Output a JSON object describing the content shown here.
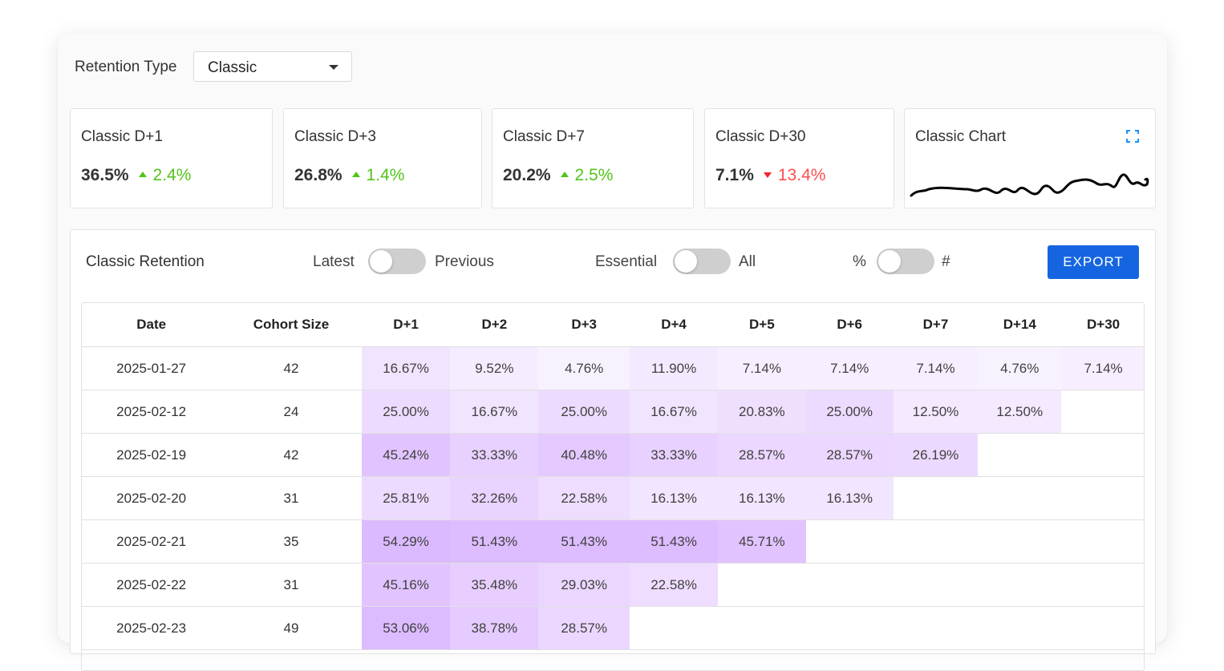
{
  "retention_type": {
    "label": "Retention Type",
    "selected": "Classic"
  },
  "metrics": [
    {
      "title": "Classic D+1",
      "value": "36.5%",
      "change": "2.4%",
      "direction": "up"
    },
    {
      "title": "Classic D+3",
      "value": "26.8%",
      "change": "1.4%",
      "direction": "up"
    },
    {
      "title": "Classic D+7",
      "value": "20.2%",
      "change": "2.5%",
      "direction": "up"
    },
    {
      "title": "Classic D+30",
      "value": "7.1%",
      "change": "13.4%",
      "direction": "down"
    }
  ],
  "chart_card": {
    "title": "Classic Chart",
    "icon": "expand-icon"
  },
  "panel": {
    "title": "Classic Retention",
    "toggle1": {
      "left": "Latest",
      "right": "Previous"
    },
    "toggle2": {
      "left": "Essential",
      "right": "All"
    },
    "toggle3": {
      "left": "%",
      "right": "#"
    },
    "export_label": "EXPORT"
  },
  "colors": {
    "accent": "#1565e0",
    "positive": "#52c41a",
    "negative": "#ff4d4f",
    "heat": "#b266ff"
  },
  "table": {
    "headers": [
      "Date",
      "Cohort Size",
      "D+1",
      "D+2",
      "D+3",
      "D+4",
      "D+5",
      "D+6",
      "D+7",
      "D+14",
      "D+30"
    ],
    "rows": [
      {
        "date": "2025-01-27",
        "size": "42",
        "cells": [
          "16.67%",
          "9.52%",
          "4.76%",
          "11.90%",
          "7.14%",
          "7.14%",
          "7.14%",
          "4.76%",
          "7.14%"
        ]
      },
      {
        "date": "2025-02-12",
        "size": "24",
        "cells": [
          "25.00%",
          "16.67%",
          "25.00%",
          "16.67%",
          "20.83%",
          "25.00%",
          "12.50%",
          "12.50%",
          ""
        ]
      },
      {
        "date": "2025-02-19",
        "size": "42",
        "cells": [
          "45.24%",
          "33.33%",
          "40.48%",
          "33.33%",
          "28.57%",
          "28.57%",
          "26.19%",
          "",
          ""
        ]
      },
      {
        "date": "2025-02-20",
        "size": "31",
        "cells": [
          "25.81%",
          "32.26%",
          "22.58%",
          "16.13%",
          "16.13%",
          "16.13%",
          "",
          "",
          ""
        ]
      },
      {
        "date": "2025-02-21",
        "size": "35",
        "cells": [
          "54.29%",
          "51.43%",
          "51.43%",
          "51.43%",
          "45.71%",
          "",
          "",
          "",
          ""
        ]
      },
      {
        "date": "2025-02-22",
        "size": "31",
        "cells": [
          "45.16%",
          "35.48%",
          "29.03%",
          "22.58%",
          "",
          "",
          "",
          "",
          ""
        ]
      },
      {
        "date": "2025-02-23",
        "size": "49",
        "cells": [
          "53.06%",
          "38.78%",
          "28.57%",
          "",
          "",
          "",
          "",
          "",
          ""
        ]
      }
    ]
  }
}
